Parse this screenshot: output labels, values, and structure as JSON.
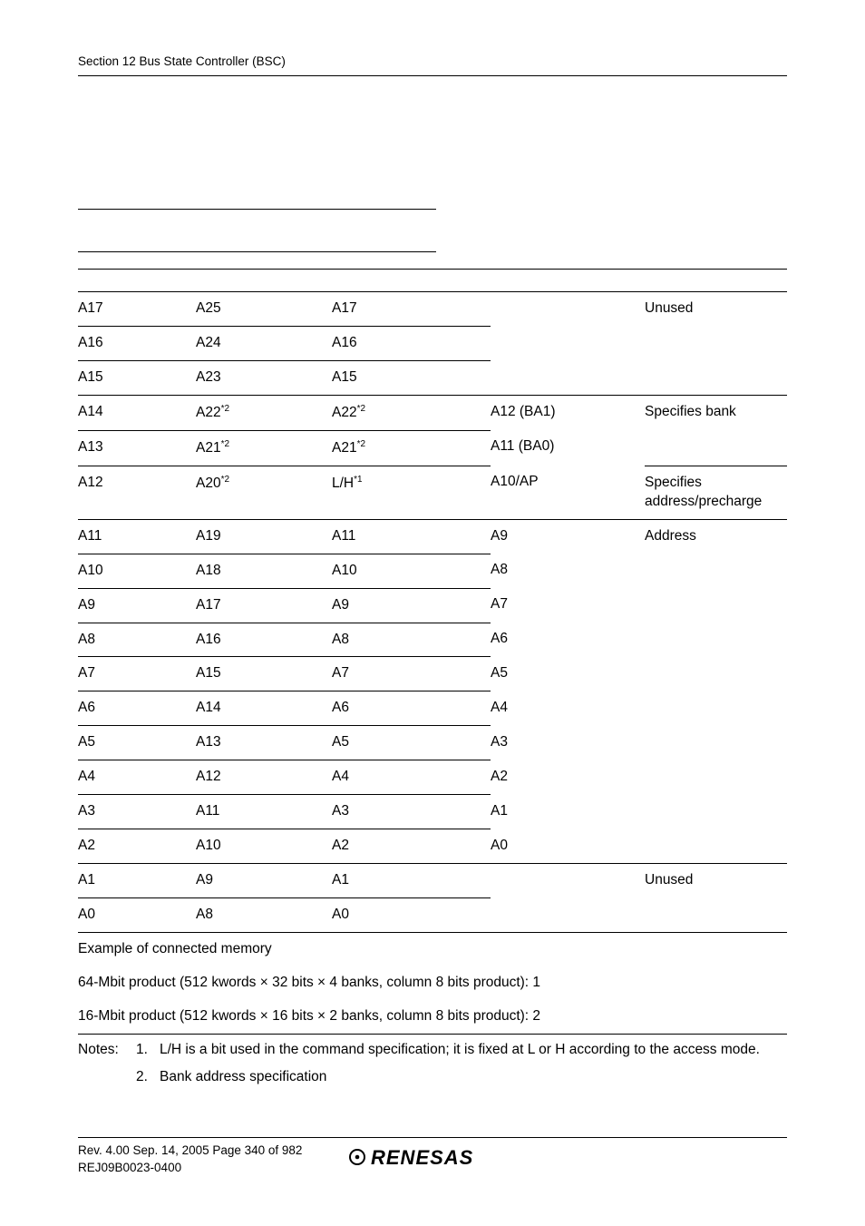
{
  "header": {
    "section_title": "Section 12   Bus State Controller (BSC)"
  },
  "table": {
    "rows": [
      {
        "c1": "A17",
        "c2": "A25",
        "c3": "A17",
        "c4": "",
        "c5": "Unused"
      },
      {
        "c1": "A16",
        "c2": "A24",
        "c3": "A16",
        "c4": "",
        "c5": ""
      },
      {
        "c1": "A15",
        "c2": "A23",
        "c3": "A15",
        "c4": "",
        "c5": ""
      },
      {
        "c1": "A14",
        "c2": "A22",
        "c2s": "*2",
        "c3": "A22",
        "c3s": "*2",
        "c4": "A12 (BA1)",
        "c5": "Specifies bank"
      },
      {
        "c1": "A13",
        "c2": "A21",
        "c2s": "*2",
        "c3": "A21",
        "c3s": "*2",
        "c4": "A11 (BA0)",
        "c5": ""
      },
      {
        "c1": "A12",
        "c2": "A20",
        "c2s": "*2",
        "c3": "L/H",
        "c3s": "*1",
        "c4": "A10/AP",
        "c5": "Specifies address/precharge"
      },
      {
        "c1": "A11",
        "c2": "A19",
        "c3": "A11",
        "c4": "A9",
        "c5": "Address"
      },
      {
        "c1": "A10",
        "c2": "A18",
        "c3": "A10",
        "c4": "A8",
        "c5": ""
      },
      {
        "c1": "A9",
        "c2": "A17",
        "c3": "A9",
        "c4": "A7",
        "c5": ""
      },
      {
        "c1": "A8",
        "c2": "A16",
        "c3": "A8",
        "c4": "A6",
        "c5": ""
      },
      {
        "c1": "A7",
        "c2": "A15",
        "c3": "A7",
        "c4": "A5",
        "c5": ""
      },
      {
        "c1": "A6",
        "c2": "A14",
        "c3": "A6",
        "c4": "A4",
        "c5": ""
      },
      {
        "c1": "A5",
        "c2": "A13",
        "c3": "A5",
        "c4": "A3",
        "c5": ""
      },
      {
        "c1": "A4",
        "c2": "A12",
        "c3": "A4",
        "c4": "A2",
        "c5": ""
      },
      {
        "c1": "A3",
        "c2": "A11",
        "c3": "A3",
        "c4": "A1",
        "c5": ""
      },
      {
        "c1": "A2",
        "c2": "A10",
        "c3": "A2",
        "c4": "A0",
        "c5": ""
      },
      {
        "c1": "A1",
        "c2": "A9",
        "c3": "A1",
        "c4": "",
        "c5": "Unused"
      },
      {
        "c1": "A0",
        "c2": "A8",
        "c3": "A0",
        "c4": "",
        "c5": ""
      }
    ],
    "example_label": "Example of connected memory",
    "example1": "64-Mbit product (512 kwords × 32 bits × 4 banks, column 8 bits product): 1",
    "example2": "16-Mbit product (512 kwords × 16 bits × 2 banks, column 8 bits product): 2",
    "notes_label": "Notes:",
    "note1_num": "1.",
    "note1": "L/H is a bit used in the command specification; it is fixed at L or H according to the access mode.",
    "note2_num": "2.",
    "note2": "Bank address specification"
  },
  "footer": {
    "line1": "Rev. 4.00  Sep. 14, 2005  Page 340 of 982",
    "line2": "REJ09B0023-0400",
    "logo_text": "RENESAS"
  }
}
